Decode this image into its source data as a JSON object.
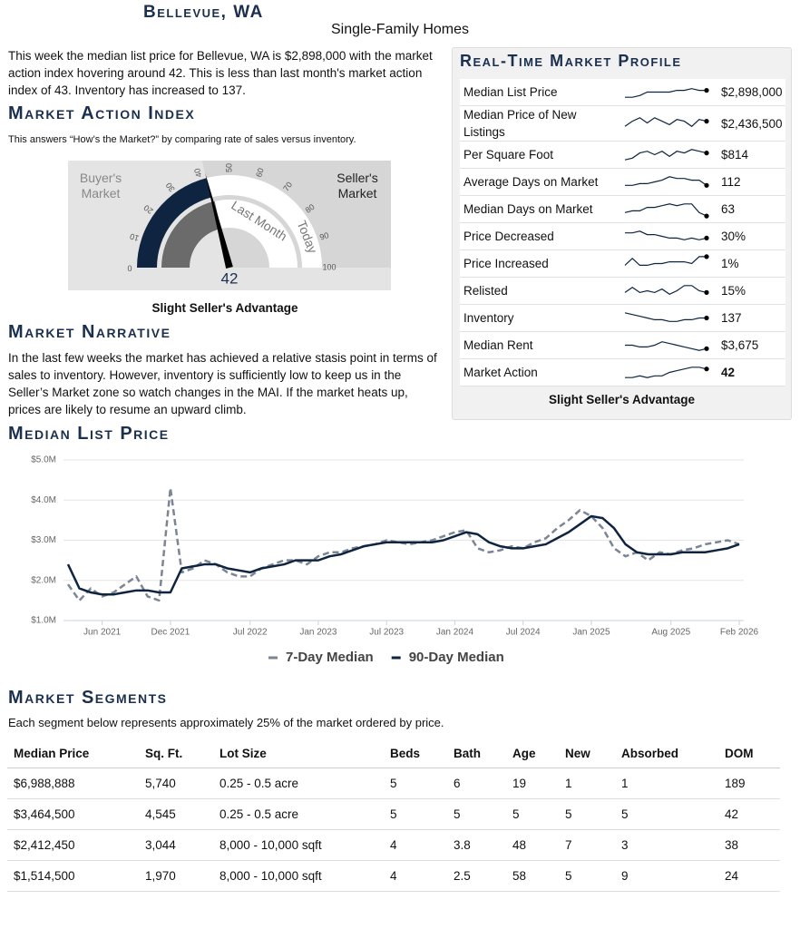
{
  "header": {
    "title": "Bellevue, WA",
    "subtitle": "Single-Family Homes"
  },
  "intro": "This week the median list price for Bellevue, WA is $2,898,000 with the market action index hovering around 42. This is less than last month's market action index of 43. Inventory has increased to 137.",
  "market_action_index": {
    "heading": "Market Action Index",
    "description": "This answers “How’s the Market?” by comparing rate of sales versus inventory.",
    "buyers_label": "Buyer's Market",
    "sellers_label": "Seller's Market",
    "last_month_label": "Last Month",
    "today_label": "Today",
    "min": 0,
    "max": 100,
    "ticks": [
      0,
      10,
      20,
      30,
      40,
      50,
      60,
      70,
      80,
      90,
      100
    ],
    "today": 42,
    "last_month": 43,
    "caption": "Slight Seller's Advantage"
  },
  "market_narrative": {
    "heading": "Market Narrative",
    "text": "In the last few weeks the market has achieved a relative stasis point in terms of sales to inventory. However, inventory is sufficiently low to keep us in the Seller’s Market zone so watch changes in the MAI. If the market heats up, prices are likely to resume an upward climb."
  },
  "market_profile": {
    "heading": "Real-Time Market Profile",
    "rows": [
      {
        "label": "Median List Price",
        "value": "$2,898,000",
        "trend": [
          2,
          2,
          3,
          5,
          5,
          5,
          5,
          6,
          6,
          7,
          6,
          6
        ]
      },
      {
        "label": "Median Price of New Listings",
        "value": "$2,436,500",
        "trend": [
          3,
          6,
          8,
          5,
          8,
          6,
          4,
          7,
          6,
          3,
          7,
          6
        ]
      },
      {
        "label": "Per Square Foot",
        "value": "$814",
        "trend": [
          2,
          3,
          6,
          7,
          5,
          7,
          4,
          7,
          6,
          8,
          7,
          6
        ]
      },
      {
        "label": "Average Days on Market",
        "value": "112",
        "trend": [
          3,
          3,
          4,
          4,
          5,
          6,
          8,
          7,
          7,
          6,
          6,
          3
        ]
      },
      {
        "label": "Median Days on Market",
        "value": "63",
        "trend": [
          3,
          4,
          4,
          6,
          6,
          7,
          8,
          7,
          8,
          8,
          3,
          1
        ]
      },
      {
        "label": "Price Decreased",
        "value": "30%",
        "trend": [
          7,
          7,
          8,
          6,
          6,
          5,
          4,
          4,
          3,
          4,
          3,
          4
        ]
      },
      {
        "label": "Price Increased",
        "value": "1%",
        "trend": [
          4,
          8,
          4,
          4,
          5,
          5,
          6,
          6,
          6,
          5,
          9,
          9
        ]
      },
      {
        "label": "Relisted",
        "value": "15%",
        "trend": [
          4,
          7,
          4,
          5,
          4,
          6,
          3,
          5,
          8,
          8,
          5,
          4
        ]
      },
      {
        "label": "Inventory",
        "value": "137",
        "trend": [
          8,
          7,
          6,
          5,
          4,
          4,
          3,
          3,
          4,
          4,
          5,
          5
        ]
      },
      {
        "label": "Median Rent",
        "value": "$3,675",
        "trend": [
          5,
          5,
          4,
          4,
          5,
          7,
          6,
          5,
          4,
          3,
          2,
          3
        ]
      },
      {
        "label": "Market Action",
        "value": "42",
        "trend": [
          2,
          2,
          3,
          2,
          3,
          3,
          5,
          6,
          7,
          8,
          8,
          7
        ]
      }
    ],
    "caption": "Slight Seller's Advantage"
  },
  "chart_data": {
    "type": "line",
    "title": "Median List Price",
    "x": [
      "2021-03",
      "2021-04",
      "2021-05",
      "2021-06",
      "2021-07",
      "2021-08",
      "2021-09",
      "2021-10",
      "2021-11",
      "2021-12",
      "2022-01",
      "2022-02",
      "2022-03",
      "2022-04",
      "2022-05",
      "2022-06",
      "2022-07",
      "2022-08",
      "2022-09",
      "2022-10",
      "2022-11",
      "2022-12",
      "2023-01",
      "2023-02",
      "2023-03",
      "2023-04",
      "2023-05",
      "2023-06",
      "2023-07",
      "2023-08",
      "2023-09",
      "2023-10",
      "2023-11",
      "2023-12",
      "2024-01",
      "2024-02",
      "2024-03",
      "2024-04",
      "2024-05",
      "2024-06",
      "2024-07",
      "2024-08",
      "2024-09",
      "2024-10",
      "2024-11",
      "2024-12",
      "2025-01",
      "2025-02",
      "2025-03",
      "2025-04",
      "2025-05",
      "2025-06",
      "2025-07",
      "2025-08",
      "2025-09",
      "2025-10",
      "2025-11",
      "2025-12",
      "2026-01",
      "2026-02"
    ],
    "series": [
      {
        "name": "7-Day Median",
        "color": "#7b8594",
        "values": [
          1900000,
          1500000,
          1800000,
          1600000,
          1700000,
          1900000,
          2100000,
          1600000,
          1500000,
          4300000,
          2200000,
          2300000,
          2500000,
          2400000,
          2200000,
          2100000,
          2100000,
          2300000,
          2400000,
          2500000,
          2500000,
          2400000,
          2600000,
          2700000,
          2700000,
          2800000,
          2850000,
          2900000,
          3000000,
          2950000,
          2900000,
          2950000,
          3000000,
          3100000,
          3200000,
          3250000,
          2800000,
          2700000,
          2750000,
          2850000,
          2800000,
          2950000,
          3050000,
          3300000,
          3500000,
          3750000,
          3600000,
          3300000,
          2800000,
          2600000,
          2700000,
          2500000,
          2700000,
          2650000,
          2750000,
          2800000,
          2900000,
          2950000,
          3000000,
          2900000
        ]
      },
      {
        "name": "90-Day Median",
        "color": "#0f2440",
        "values": [
          2400000,
          1800000,
          1700000,
          1650000,
          1650000,
          1700000,
          1750000,
          1750000,
          1700000,
          1700000,
          2300000,
          2350000,
          2400000,
          2400000,
          2300000,
          2250000,
          2200000,
          2300000,
          2350000,
          2400000,
          2500000,
          2500000,
          2500000,
          2600000,
          2650000,
          2750000,
          2850000,
          2900000,
          2950000,
          2950000,
          2950000,
          2950000,
          2950000,
          3000000,
          3100000,
          3200000,
          3150000,
          2950000,
          2850000,
          2800000,
          2800000,
          2850000,
          2900000,
          3050000,
          3200000,
          3400000,
          3600000,
          3550000,
          3300000,
          2900000,
          2700000,
          2650000,
          2650000,
          2650000,
          2700000,
          2700000,
          2700000,
          2750000,
          2800000,
          2900000
        ]
      }
    ],
    "xlim": [
      "2021-03",
      "2026-02"
    ],
    "xticks": [
      {
        "value": "2021-06",
        "label": "Jun 2021"
      },
      {
        "value": "2021-12",
        "label": "Dec 2021"
      },
      {
        "value": "2022-07",
        "label": "Jul 2022"
      },
      {
        "value": "2023-01",
        "label": "Jan 2023"
      },
      {
        "value": "2023-07",
        "label": "Jul 2023"
      },
      {
        "value": "2024-01",
        "label": "Jan 2024"
      },
      {
        "value": "2024-07",
        "label": "Jul 2024"
      },
      {
        "value": "2025-01",
        "label": "Jan 2025"
      },
      {
        "value": "2025-08",
        "label": "Aug 2025"
      },
      {
        "value": "2026-02",
        "label": "Feb 2026"
      }
    ],
    "ylim": [
      1000000,
      5000000
    ],
    "yticks": [
      {
        "value": 1000000,
        "label": "$1.0M"
      },
      {
        "value": 2000000,
        "label": "$2.0M"
      },
      {
        "value": 3000000,
        "label": "$3.0M"
      },
      {
        "value": 4000000,
        "label": "$4.0M"
      },
      {
        "value": 5000000,
        "label": "$5.0M"
      }
    ],
    "grid": true
  },
  "market_segments": {
    "heading": "Market Segments",
    "description": "Each segment below represents approximately 25% of the market ordered by price.",
    "columns": [
      "Median Price",
      "Sq. Ft.",
      "Lot Size",
      "Beds",
      "Bath",
      "Age",
      "New",
      "Absorbed",
      "DOM"
    ],
    "rows": [
      [
        "$6,988,888",
        "5,740",
        "0.25 - 0.5 acre",
        "5",
        "6",
        "19",
        "1",
        "1",
        "189"
      ],
      [
        "$3,464,500",
        "4,545",
        "0.25 - 0.5 acre",
        "5",
        "5",
        "5",
        "5",
        "5",
        "42"
      ],
      [
        "$2,412,450",
        "3,044",
        "8,000 - 10,000 sqft",
        "4",
        "3.8",
        "48",
        "7",
        "3",
        "38"
      ],
      [
        "$1,514,500",
        "1,970",
        "8,000 - 10,000 sqft",
        "4",
        "2.5",
        "58",
        "5",
        "9",
        "24"
      ]
    ]
  }
}
